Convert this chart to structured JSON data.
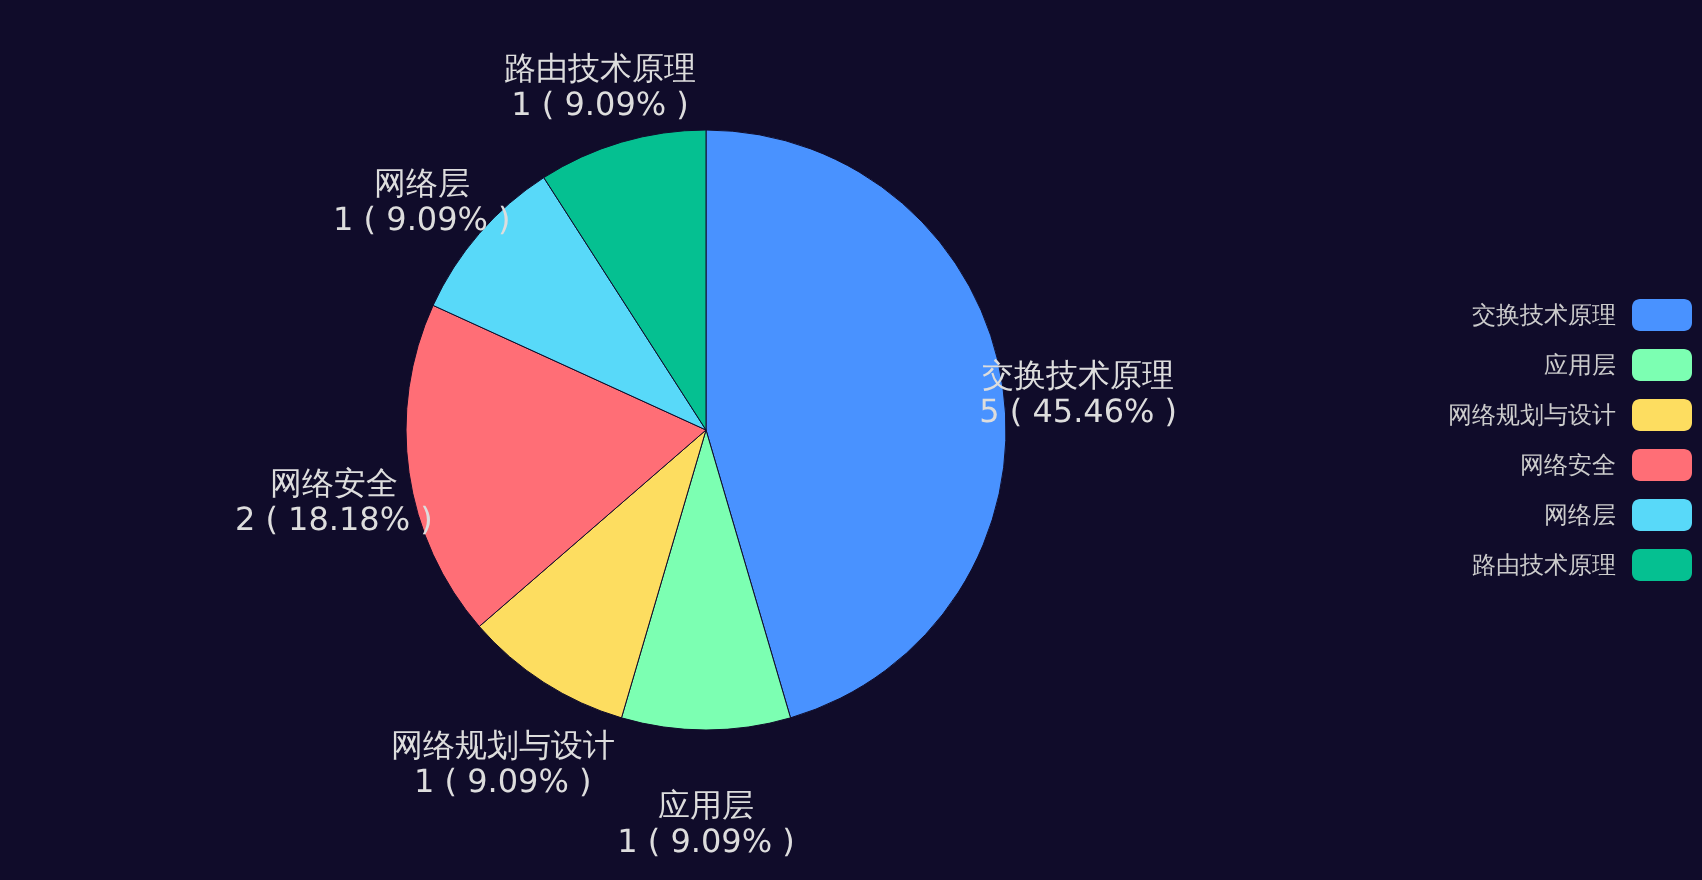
{
  "chart_data": {
    "type": "pie",
    "categories": [
      "交换技术原理",
      "应用层",
      "网络规划与设计",
      "网络安全",
      "网络层",
      "路由技术原理"
    ],
    "values": [
      5,
      1,
      1,
      2,
      1,
      1
    ],
    "value_labels": [
      "5 ( 45.46% )",
      "1 ( 9.09% )",
      "1 ( 9.09% )",
      "2 ( 18.18% )",
      "1 ( 9.09% )",
      "1 ( 9.09% )"
    ],
    "colors": [
      "#4992ff",
      "#7cffb2",
      "#fddd60",
      "#ff6e76",
      "#58d9f9",
      "#05c091"
    ],
    "legend": "right"
  }
}
